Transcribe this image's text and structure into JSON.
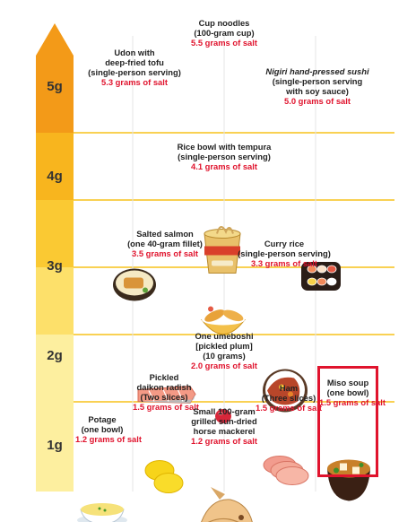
{
  "colors": {
    "band_5g": "#f39a18",
    "band_4g": "#f8b51e",
    "band_3g": "#fac933",
    "band_2g": "#fde06a",
    "band_1g": "#fdef9f",
    "gridline": "#f7c21a",
    "salt_text": "#e0132d",
    "highlight_border": "#e0132d"
  },
  "chart_data": {
    "type": "scatter",
    "y_unit": "g",
    "ylim": [
      0.5,
      5.8
    ],
    "y_ticks": [
      "5g",
      "4g",
      "3g",
      "2g",
      "1g"
    ],
    "grid": true,
    "items": [
      {
        "id": "cup-noodles",
        "name_lines": [
          "Cup noodles",
          "(100-gram cup)"
        ],
        "salt_text": "5.5 grams of salt",
        "value": 5.5,
        "icon": "cup-noodles-icon"
      },
      {
        "id": "udon",
        "name_lines": [
          "Udon with",
          "deep-fried tofu",
          "(single-person serving)"
        ],
        "salt_text": "5.3 grams of salt",
        "value": 5.3,
        "icon": "udon-bowl-icon"
      },
      {
        "id": "sushi",
        "name_lines": [
          "Nigiri hand-pressed sushi",
          "(single-person serving",
          "with soy sauce)"
        ],
        "salt_text": "5.0 grams of salt",
        "value": 5.0,
        "icon": "sushi-icon"
      },
      {
        "id": "tempura-bowl",
        "name_lines": [
          "Rice bowl with tempura",
          "(single-person serving)"
        ],
        "salt_text": "4.1 grams of salt",
        "value": 4.1,
        "icon": "tempura-bowl-icon"
      },
      {
        "id": "salmon",
        "name_lines": [
          "Salted salmon",
          "(one 40-gram fillet)"
        ],
        "salt_text": "3.5 grams of salt",
        "value": 3.5,
        "icon": "salmon-icon"
      },
      {
        "id": "curry",
        "name_lines": [
          "Curry rice",
          "(single-person serving)"
        ],
        "salt_text": "3.3 grams of salt",
        "value": 3.3,
        "icon": "curry-rice-icon"
      },
      {
        "id": "umeboshi",
        "name_lines": [
          "One umeboshi",
          "[pickled plum]",
          "(10 grams)"
        ],
        "salt_text": "2.0 grams of salt",
        "value": 2.0,
        "icon": "umeboshi-icon"
      },
      {
        "id": "daikon",
        "name_lines": [
          "Pickled",
          "daikon radish",
          "(Two slices)"
        ],
        "salt_text": "1.5 grams of salt",
        "value": 1.5,
        "icon": "daikon-icon"
      },
      {
        "id": "ham",
        "name_lines": [
          "Ham",
          "(Three slices)"
        ],
        "salt_text": "1.5 grams of salt",
        "value": 1.5,
        "icon": "ham-icon"
      },
      {
        "id": "miso",
        "name_lines": [
          "Miso soup",
          "(one bowl)"
        ],
        "salt_text": "1.5 grams of salt",
        "value": 1.5,
        "icon": "miso-soup-icon",
        "highlighted": true
      },
      {
        "id": "mackerel",
        "name_lines": [
          "Small 100-gram",
          "grilled sun-dried",
          "horse mackerel"
        ],
        "salt_text": "1.2 grams of salt",
        "value": 1.2,
        "icon": "mackerel-icon"
      },
      {
        "id": "potage",
        "name_lines": [
          "Potage",
          "(one bowl)"
        ],
        "salt_text": "1.2 grams of salt",
        "value": 1.2,
        "icon": "potage-icon"
      }
    ]
  }
}
